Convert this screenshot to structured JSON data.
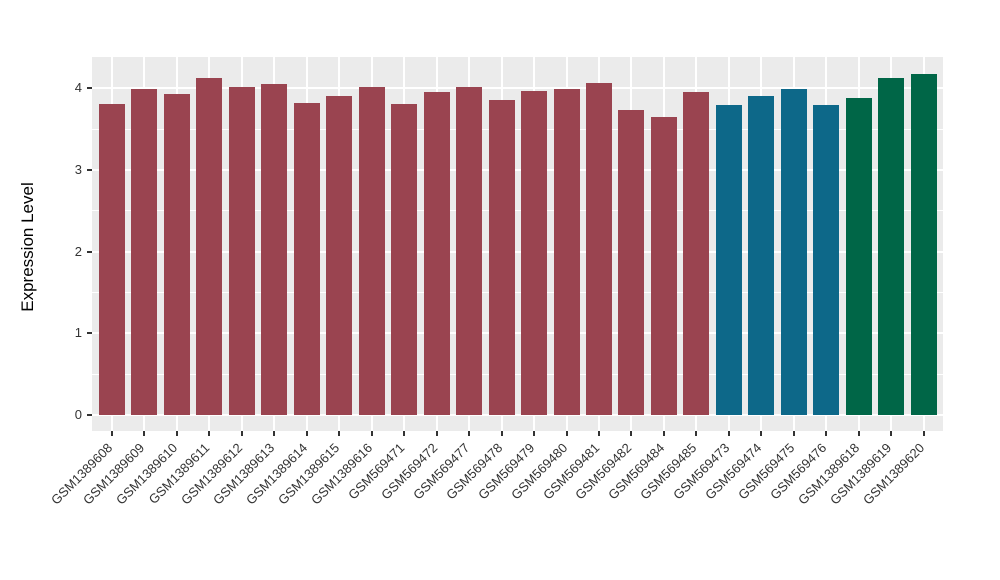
{
  "chart_data": {
    "type": "bar",
    "title": "",
    "xlabel": "",
    "ylabel": "Expression Level",
    "ylim": [
      0,
      4.38
    ],
    "yticks": [
      "0",
      "1",
      "2",
      "3",
      "4"
    ],
    "ytick_values": [
      0,
      1,
      2,
      3,
      4
    ],
    "yminor_values": [
      0.5,
      1.5,
      2.5,
      3.5
    ],
    "grid": "white major and minor gridlines on gray panel (ggplot style)",
    "legend_position": "none",
    "categories": [
      "GSM1389608",
      "GSM1389609",
      "GSM1389610",
      "GSM1389611",
      "GSM1389612",
      "GSM1389613",
      "GSM1389614",
      "GSM1389615",
      "GSM1389616",
      "GSM569471",
      "GSM569472",
      "GSM569477",
      "GSM569478",
      "GSM569479",
      "GSM569480",
      "GSM569481",
      "GSM569482",
      "GSM569484",
      "GSM569485",
      "GSM569473",
      "GSM569474",
      "GSM569475",
      "GSM569476",
      "GSM1389618",
      "GSM1389619",
      "GSM1389620"
    ],
    "values": [
      3.81,
      3.99,
      3.93,
      4.12,
      4.02,
      4.05,
      3.82,
      3.91,
      4.01,
      3.81,
      3.95,
      4.02,
      3.86,
      3.97,
      3.99,
      4.07,
      3.73,
      3.65,
      3.95,
      3.8,
      3.9,
      3.99,
      3.8,
      3.88,
      4.12,
      4.17
    ],
    "bar_colors": [
      "#9A4450",
      "#9A4450",
      "#9A4450",
      "#9A4450",
      "#9A4450",
      "#9A4450",
      "#9A4450",
      "#9A4450",
      "#9A4450",
      "#9A4450",
      "#9A4450",
      "#9A4450",
      "#9A4450",
      "#9A4450",
      "#9A4450",
      "#9A4450",
      "#9A4450",
      "#9A4450",
      "#9A4450",
      "#0D6889",
      "#0D6889",
      "#0D6889",
      "#0D6889",
      "#006647",
      "#006647",
      "#006647"
    ],
    "palette": {
      "maroon": "#9A4450",
      "teal": "#0D6889",
      "green": "#006647"
    },
    "panel_background": "#EBEBEB",
    "gridline_color": "#ffffff",
    "axis_text_color": "#333333"
  }
}
